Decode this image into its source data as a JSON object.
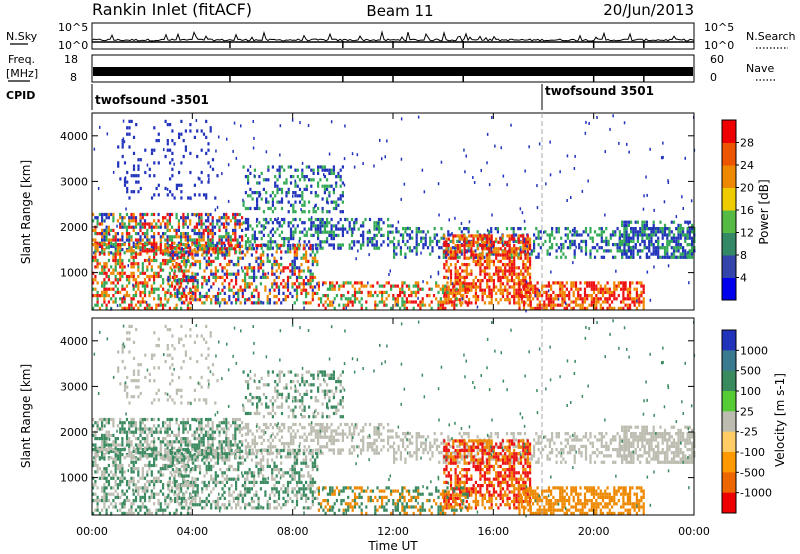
{
  "header": {
    "station": "Rankin Inlet (fitACF)",
    "beam": "Beam 11",
    "date": "20/Jun/2013"
  },
  "noise_panel": {
    "left_label": "N.Sky",
    "right_label": "N.Search",
    "left_ticks": [
      "10^5",
      "10^0"
    ],
    "right_ticks": [
      "10^5",
      "10^0"
    ]
  },
  "freq_panel": {
    "left_label_line1": "Freq.",
    "left_label_line2": "[MHz]",
    "left_ticks": [
      "18",
      "8"
    ],
    "right_label": "Nave",
    "right_ticks": [
      "60",
      "0"
    ]
  },
  "cpid_panel": {
    "label": "CPID",
    "programs": [
      {
        "name": "twofsound -3501",
        "start": "00:00"
      },
      {
        "name": "twofsound 3501",
        "start": "18:00"
      }
    ]
  },
  "colors": {
    "power_red": "#ee1111",
    "power_orange": "#ee8800",
    "power_green": "#33aa55",
    "power_blue": "#2233bb",
    "velocity_gray": "#bcbcb0",
    "velocity_green": "#3a8a60",
    "velocity_orange": "#ee8800"
  },
  "chart_data": [
    {
      "type": "heatmap",
      "name": "power",
      "ylabel": "Slant Range [km]",
      "y_ticks": [
        1000,
        2000,
        3000,
        4000
      ],
      "ylim": [
        180,
        4500
      ],
      "x_ticks": [
        "00:00",
        "04:00",
        "08:00",
        "12:00",
        "16:00",
        "20:00",
        "00:00"
      ],
      "xlim_hours": [
        0,
        24
      ],
      "colorbar_label": "Power [dB]",
      "colorbar_ticks": [
        4,
        8,
        12,
        16,
        20,
        24,
        28
      ],
      "colorbar_colors": [
        "#0000ee",
        "#3344aa",
        "#338866",
        "#55bb44",
        "#eecc00",
        "#ee8800",
        "#ee5500",
        "#ee0000"
      ]
    },
    {
      "type": "heatmap",
      "name": "velocity",
      "ylabel": "Slant Range [km]",
      "y_ticks": [
        1000,
        2000,
        3000,
        4000
      ],
      "ylim": [
        180,
        4500
      ],
      "x_ticks": [
        "00:00",
        "04:00",
        "08:00",
        "12:00",
        "16:00",
        "20:00",
        "00:00"
      ],
      "xlim_hours": [
        0,
        24
      ],
      "xlabel": "Time UT",
      "colorbar_label": "Velocity [m s-1]",
      "colorbar_ticks": [
        "1000",
        "500",
        "100",
        "25",
        "-25",
        "-100",
        "-500",
        "-1000"
      ],
      "colorbar_colors": [
        "#2233bb",
        "#3a7a90",
        "#3a8a60",
        "#55cc33",
        "#bcbcb0",
        "#ffcc66",
        "#ff9900",
        "#ee6600",
        "#ee0000"
      ]
    }
  ]
}
